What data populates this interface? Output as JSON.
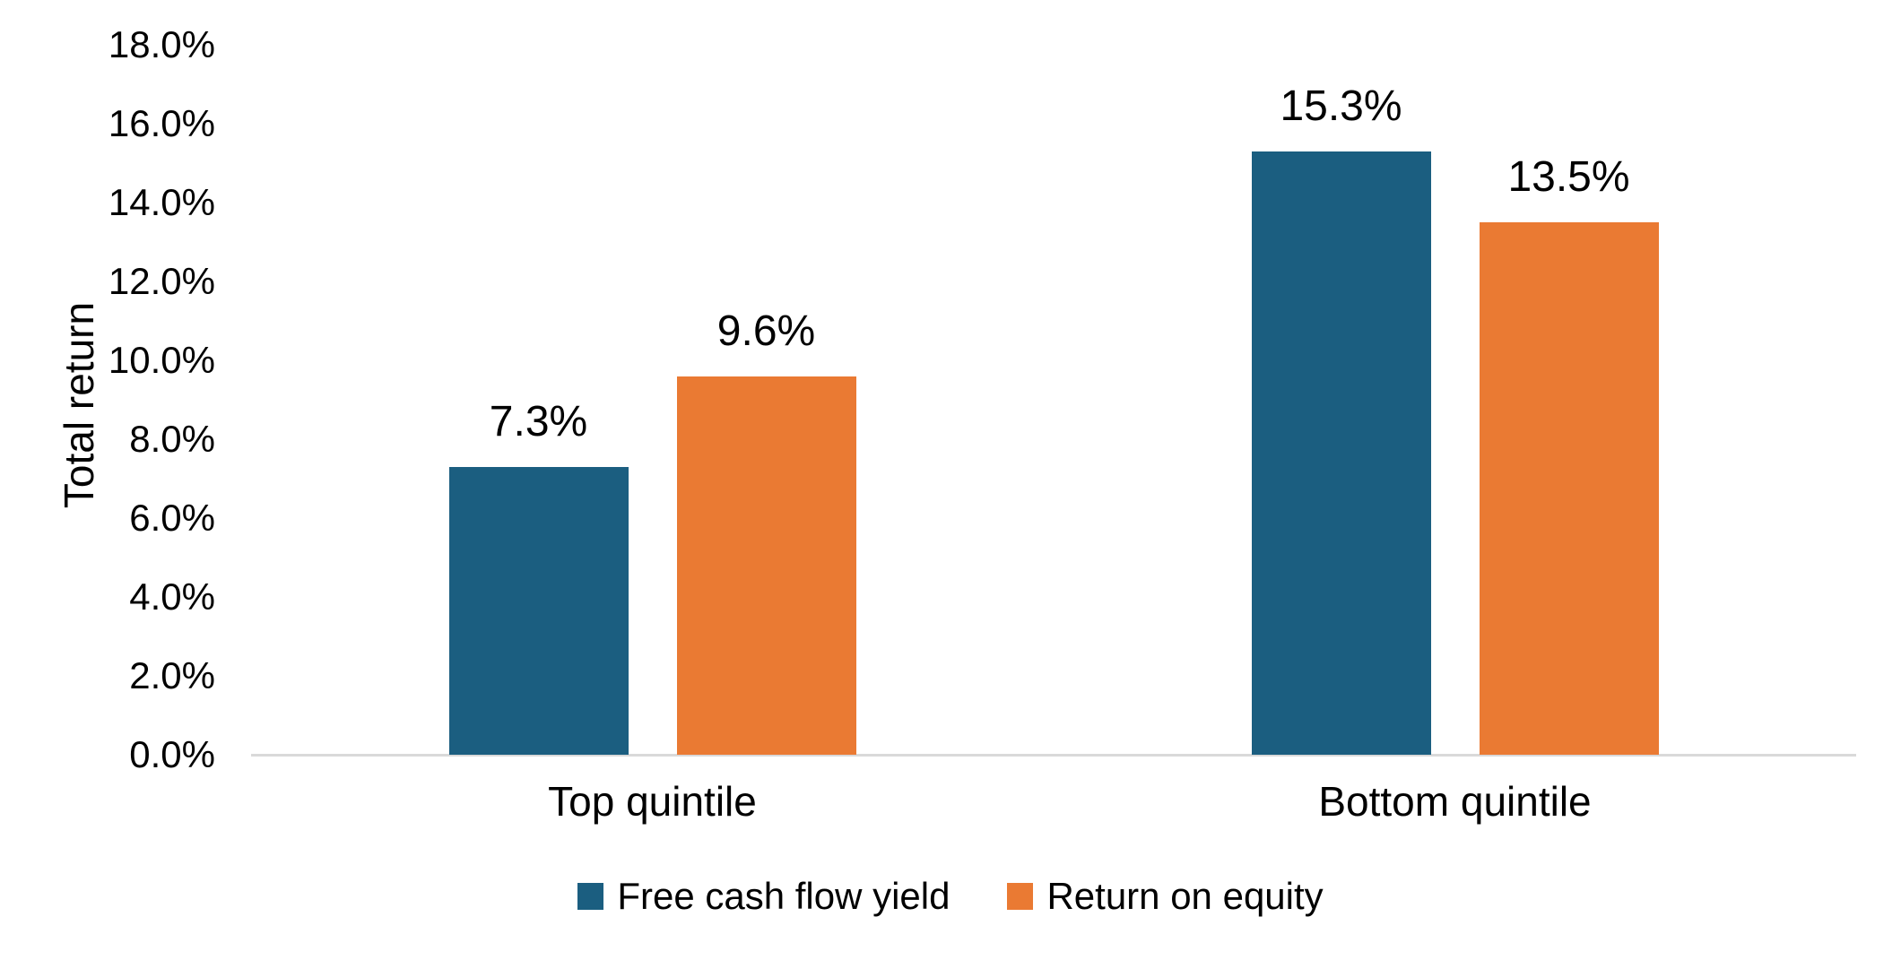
{
  "chart_data": {
    "type": "bar",
    "categories": [
      "Top quintile",
      "Bottom quintile"
    ],
    "series": [
      {
        "name": "Free cash flow yield",
        "color": "#1B5E80",
        "values": [
          7.3,
          15.3
        ],
        "labels": [
          "7.3%",
          "15.3%"
        ]
      },
      {
        "name": "Return on equity",
        "color": "#EA7A33",
        "values": [
          9.6,
          13.5
        ],
        "labels": [
          "9.6%",
          "13.5%"
        ]
      }
    ],
    "title": "",
    "xlabel": "",
    "ylabel": "Total return",
    "ylim": [
      0,
      18
    ],
    "ytick_step": 2,
    "ytick_labels": [
      "0.0%",
      "2.0%",
      "4.0%",
      "6.0%",
      "8.0%",
      "10.0%",
      "12.0%",
      "14.0%",
      "16.0%",
      "18.0%"
    ],
    "grid": false,
    "legend_position": "bottom",
    "axis_line_color": "#D9D9D9",
    "text_color": "#000000",
    "background_color": "#FFFFFF"
  }
}
